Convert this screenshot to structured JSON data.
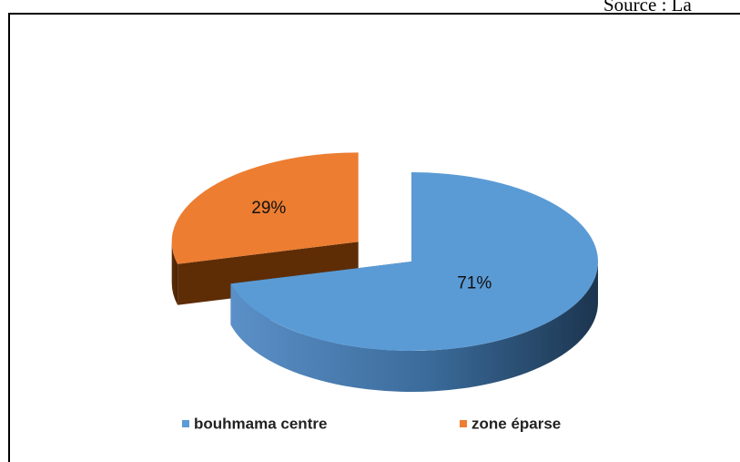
{
  "source": "Source : La",
  "chart_data": {
    "type": "pie",
    "categories": [
      "bouhmama centre",
      "zone éparse"
    ],
    "values": [
      71,
      29
    ],
    "value_labels": [
      "71%",
      "29%"
    ],
    "colors": [
      "#5b9bd5",
      "#ed7d31"
    ],
    "explode": [
      false,
      true
    ],
    "legend": "bottom"
  }
}
